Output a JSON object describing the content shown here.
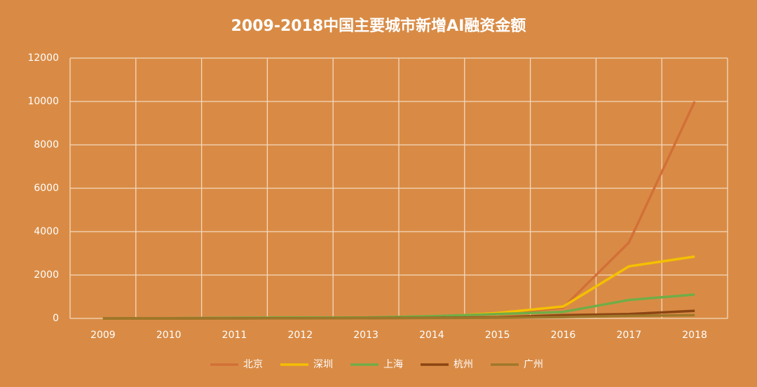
{
  "chart_data": {
    "type": "line",
    "title": "2009-2018中国主要城市新增AI融资金额",
    "categories": [
      "2009",
      "2010",
      "2011",
      "2012",
      "2013",
      "2014",
      "2015",
      "2016",
      "2017",
      "2018"
    ],
    "series": [
      {
        "name": "北京",
        "color": "#d27038",
        "values": [
          0,
          10,
          20,
          30,
          40,
          80,
          200,
          500,
          3500,
          10000
        ]
      },
      {
        "name": "深圳",
        "color": "#f5c000",
        "values": [
          0,
          5,
          10,
          15,
          20,
          60,
          250,
          550,
          2400,
          2850
        ]
      },
      {
        "name": "上海",
        "color": "#70ad47",
        "values": [
          0,
          10,
          30,
          40,
          40,
          100,
          200,
          300,
          850,
          1100
        ]
      },
      {
        "name": "杭州",
        "color": "#8b4513",
        "values": [
          0,
          0,
          5,
          10,
          15,
          30,
          50,
          150,
          200,
          350
        ]
      },
      {
        "name": "广州",
        "color": "#a0772a",
        "values": [
          0,
          0,
          0,
          5,
          10,
          20,
          30,
          60,
          120,
          150
        ]
      }
    ],
    "ylim": [
      0,
      12000
    ],
    "yticks": [
      0,
      2000,
      4000,
      6000,
      8000,
      10000,
      12000
    ],
    "grid": true,
    "legend": "bottom"
  }
}
